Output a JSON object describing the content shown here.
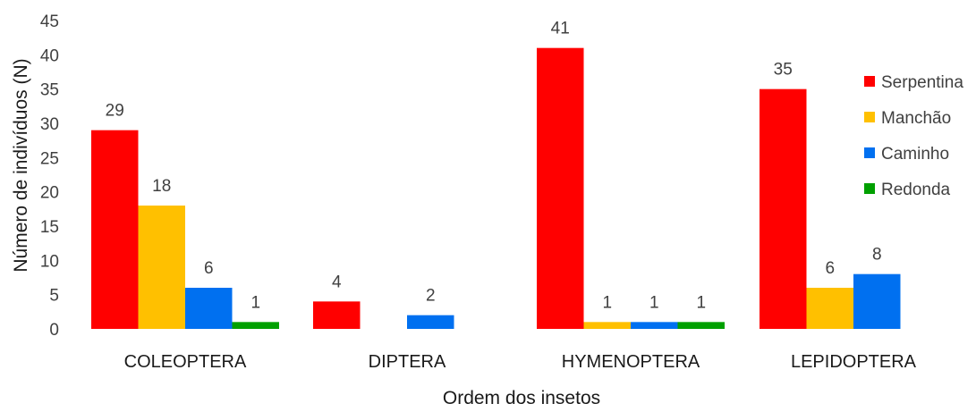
{
  "chart_data": {
    "type": "bar",
    "title": "",
    "xlabel": "Ordem dos insetos",
    "ylabel": "Número de indivíduos (N)",
    "ylim": [
      0,
      45
    ],
    "yticks": [
      0,
      5,
      10,
      15,
      20,
      25,
      30,
      35,
      40,
      45
    ],
    "grid": false,
    "legend_position": "right",
    "categories": [
      "COLEOPTERA",
      "DIPTERA",
      "HYMENOPTERA",
      "LEPIDOPTERA"
    ],
    "series": [
      {
        "name": "Serpentina",
        "color": "#ff0000",
        "values": [
          29,
          4,
          41,
          35
        ]
      },
      {
        "name": "Manchão",
        "color": "#ffc000",
        "values": [
          18,
          0,
          1,
          6
        ]
      },
      {
        "name": "Caminho",
        "color": "#0070f0",
        "values": [
          6,
          2,
          1,
          8
        ]
      },
      {
        "name": "Redonda",
        "color": "#00a000",
        "values": [
          1,
          0,
          1,
          0
        ]
      }
    ]
  }
}
